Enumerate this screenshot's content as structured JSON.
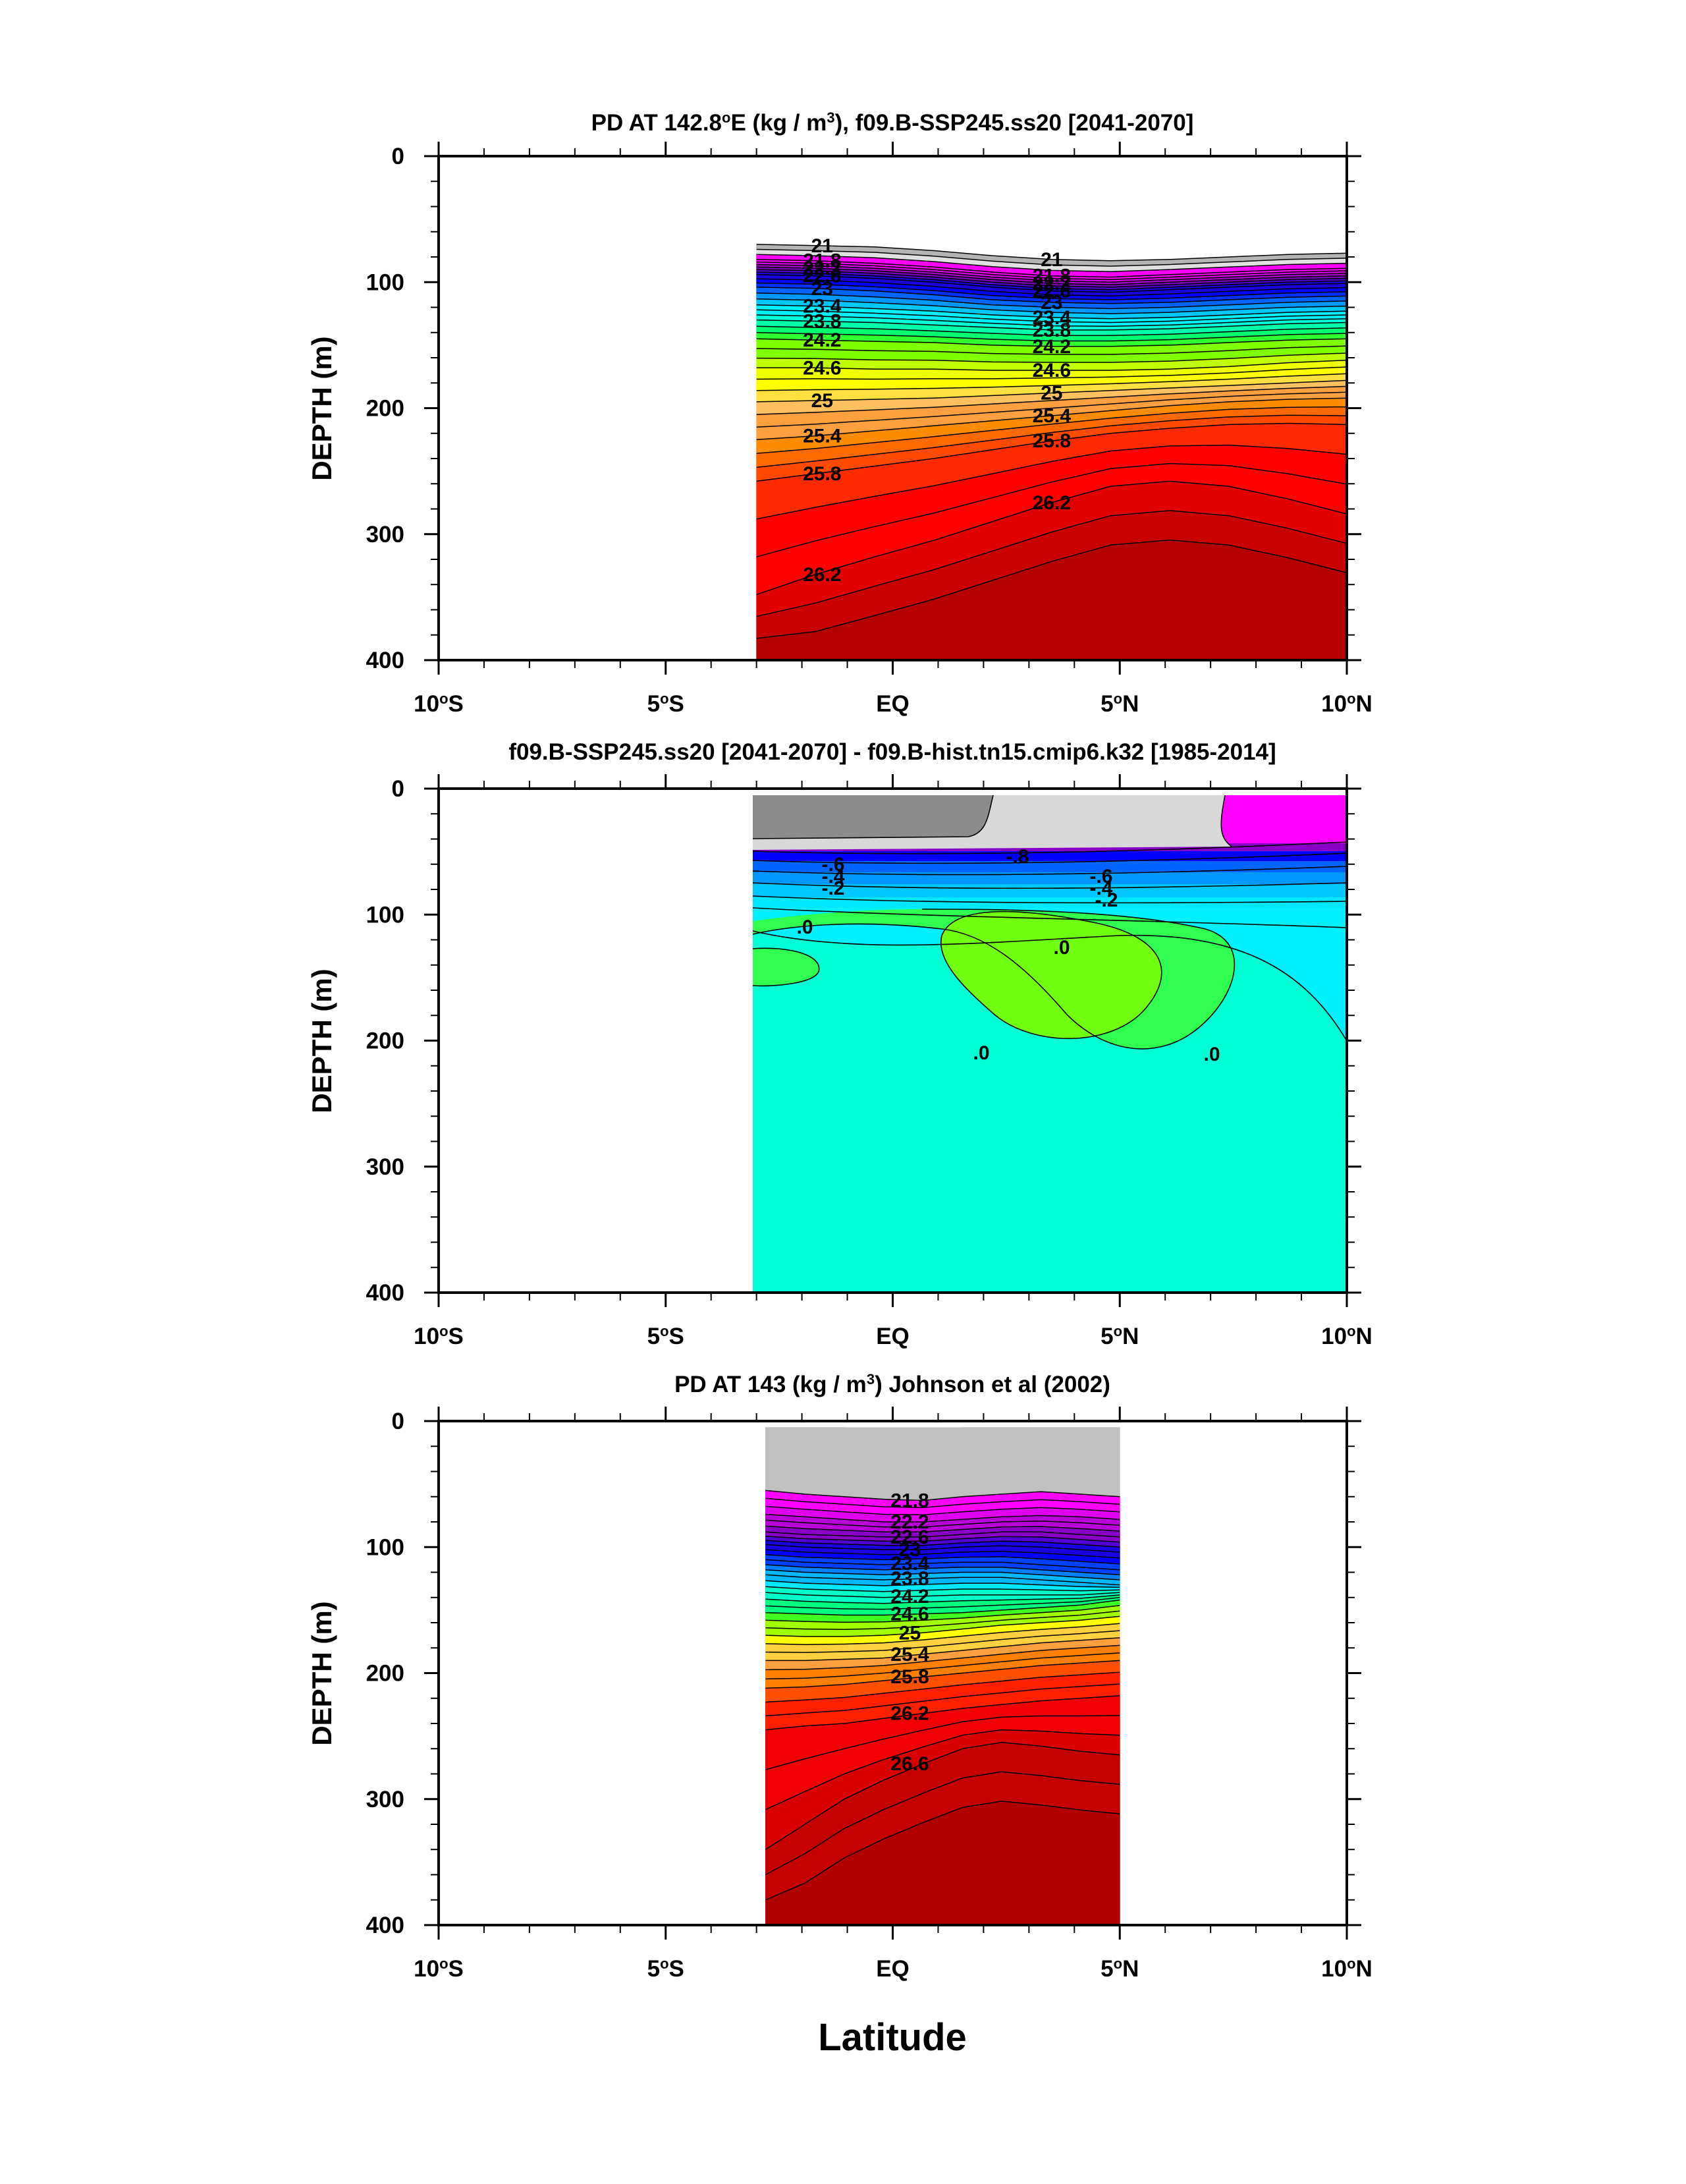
{
  "chart_data": [
    {
      "type": "filled-contour",
      "title": "PD AT 142.8°E (kg / m³), f09.B-SSP245.ss20 [2041-2070]",
      "title_parts": [
        "PD AT 142.8",
        "o",
        "E (kg / m",
        "3",
        "), f09.B-SSP245.ss20 [2041-2070]"
      ],
      "ylabel": "DEPTH (m)",
      "xlim": [
        -10,
        10
      ],
      "ylim": [
        400,
        0
      ],
      "x_ticks": [
        -10,
        -5,
        0,
        5,
        10
      ],
      "x_tick_labels": [
        [
          "10",
          "o",
          "S"
        ],
        [
          "5",
          "o",
          "S"
        ],
        [
          "",
          "",
          "EQ"
        ],
        [
          "5",
          "o",
          "N"
        ],
        [
          "10",
          "o",
          "N"
        ]
      ],
      "y_ticks": [
        0,
        100,
        200,
        300,
        400
      ],
      "y_tick_labels": [
        "0",
        "100",
        "200",
        "300",
        "400"
      ],
      "data_x_range": [
        -3,
        10
      ],
      "colors": [
        "#8c8c8c",
        "#b4b4b4",
        "#e0e0e0",
        "#ff00ff",
        "#d800e8",
        "#aa00cc",
        "#7a00bb",
        "#5000c8",
        "#1a00dc",
        "#0000ff",
        "#0030ff",
        "#0064ff",
        "#0098ff",
        "#00c8ff",
        "#00f0ff",
        "#00ffd8",
        "#00ffaa",
        "#00ff70",
        "#30ff30",
        "#80ff00",
        "#c0ff00",
        "#f0ff00",
        "#ffff00",
        "#ffe040",
        "#ffc060",
        "#ffa040",
        "#ff8c00",
        "#ff6a00",
        "#ff4a00",
        "#ff2a00",
        "#ff0000",
        "#e00000",
        "#c80000",
        "#b40000"
      ],
      "contours": [
        {
          "value": 21.0,
          "depth": [
            70,
            71,
            72,
            75,
            79,
            82,
            83,
            82,
            80,
            78,
            77
          ],
          "label": "21"
        },
        {
          "value": 21.8,
          "depth": [
            82,
            83,
            85,
            88,
            92,
            95,
            96,
            94,
            92,
            90,
            89
          ],
          "label": "21.8"
        },
        {
          "value": 22.2,
          "depth": [
            88,
            89,
            91,
            94,
            98,
            101,
            102,
            100,
            98,
            96,
            95
          ],
          "label": "22.2"
        },
        {
          "value": 22.6,
          "depth": [
            94,
            95,
            97,
            100,
            104,
            107,
            108,
            106,
            104,
            102,
            101
          ],
          "label": "22.6"
        },
        {
          "value": 23.0,
          "depth": [
            104,
            105,
            107,
            110,
            114,
            116,
            117,
            116,
            114,
            112,
            111
          ],
          "label": "23"
        },
        {
          "value": 23.4,
          "depth": [
            118,
            119,
            121,
            123,
            126,
            128,
            129,
            128,
            126,
            124,
            123
          ],
          "label": "23.4"
        },
        {
          "value": 23.8,
          "depth": [
            130,
            131,
            132,
            134,
            136,
            138,
            138,
            137,
            135,
            133,
            132
          ],
          "label": "23.8"
        },
        {
          "value": 24.2,
          "depth": [
            145,
            146,
            147,
            148,
            150,
            151,
            151,
            150,
            148,
            146,
            145
          ],
          "label": "24.2"
        },
        {
          "value": 24.6,
          "depth": [
            168,
            168,
            169,
            169,
            170,
            170,
            170,
            169,
            167,
            164,
            162
          ],
          "label": "24.6"
        },
        {
          "value": 25.0,
          "depth": [
            195,
            194,
            193,
            192,
            190,
            188,
            186,
            184,
            182,
            180,
            178
          ],
          "label": "25"
        },
        {
          "value": 25.4,
          "depth": [
            225,
            222,
            218,
            214,
            210,
            206,
            202,
            198,
            195,
            193,
            192
          ],
          "label": "25.4"
        },
        {
          "value": 25.8,
          "depth": [
            258,
            252,
            246,
            240,
            233,
            226,
            220,
            216,
            213,
            212,
            213
          ],
          "label": "25.8"
        },
        {
          "value": 26.2,
          "depth": [
            348,
            332,
            318,
            305,
            290,
            275,
            262,
            258,
            262,
            272,
            284
          ],
          "label": "26.2"
        }
      ]
    },
    {
      "type": "filled-contour",
      "title": "f09.B-SSP245.ss20 [2041-2070] - f09.B-hist.tn15.cmip6.k32 [1985-2014]",
      "ylabel": "DEPTH (m)",
      "xlim": [
        -10,
        10
      ],
      "ylim": [
        400,
        0
      ],
      "x_ticks": [
        -10,
        -5,
        0,
        5,
        10
      ],
      "x_tick_labels": [
        [
          "10",
          "o",
          "S"
        ],
        [
          "5",
          "o",
          "S"
        ],
        [
          "",
          "",
          "EQ"
        ],
        [
          "5",
          "o",
          "N"
        ],
        [
          "10",
          "o",
          "N"
        ]
      ],
      "y_ticks": [
        0,
        100,
        200,
        300,
        400
      ],
      "y_tick_labels": [
        "0",
        "100",
        "200",
        "300",
        "400"
      ],
      "data_x_range": [
        -3,
        10
      ],
      "contour_labels": [
        "-.8",
        "-.6",
        "-.4",
        "-.2",
        ".0",
        "-.6",
        "-.4",
        "-.2",
        ".0",
        ".0",
        ".0"
      ],
      "regions": [
        {
          "name": "deep",
          "value": 0.0,
          "color": "#00ffd4"
        },
        {
          "name": "thermocline-negative",
          "value": -0.1,
          "color": "#00f0ff"
        },
        {
          "name": "subsurface-positive",
          "value": 0.05,
          "color": "#30ff50"
        },
        {
          "name": "core-positive",
          "value": 0.1,
          "color": "#70ff10"
        },
        {
          "name": "surface-gray-dark",
          "value": -1.0,
          "color": "#8c8c8c"
        },
        {
          "name": "surface-gray-light",
          "value": -0.9,
          "color": "#d8d8d8"
        },
        {
          "name": "surface-magenta",
          "value": -0.7,
          "color": "#ff00ff"
        }
      ]
    },
    {
      "type": "filled-contour",
      "title": "PD AT 143 (kg / m³) Johnson et al (2002)",
      "title_parts": [
        "PD AT 143 (kg / m",
        "3",
        ") Johnson et al (2002)"
      ],
      "ylabel": "DEPTH (m)",
      "xlabel": "Latitude",
      "xlim": [
        -10,
        10
      ],
      "ylim": [
        400,
        0
      ],
      "x_ticks": [
        -10,
        -5,
        0,
        5,
        10
      ],
      "x_tick_labels": [
        [
          "10",
          "o",
          "S"
        ],
        [
          "5",
          "o",
          "S"
        ],
        [
          "",
          "",
          "EQ"
        ],
        [
          "5",
          "o",
          "N"
        ],
        [
          "10",
          "o",
          "N"
        ]
      ],
      "y_ticks": [
        0,
        100,
        200,
        300,
        400
      ],
      "y_tick_labels": [
        "0",
        "100",
        "200",
        "300",
        "400"
      ],
      "data_x_range": [
        -2.8,
        5
      ],
      "colors": [
        "#c0c0c0",
        "#ff00ff",
        "#e000f0",
        "#b800d8",
        "#8800c8",
        "#5000d0",
        "#1a00e0",
        "#0000ff",
        "#0040ff",
        "#0080ff",
        "#00b8ff",
        "#00e8ff",
        "#00ffc8",
        "#00ff80",
        "#40ff20",
        "#a0ff00",
        "#ffff00",
        "#ffd040",
        "#ffa040",
        "#ff8000",
        "#ff5000",
        "#ff2000",
        "#f00000",
        "#d80000",
        "#c40000",
        "#b00000"
      ],
      "contours": [
        {
          "value": 21.8,
          "depth": [
            55,
            58,
            60,
            62,
            63,
            60,
            58,
            56,
            58,
            60
          ],
          "label": "21.8"
        },
        {
          "value": 22.2,
          "depth": [
            74,
            76,
            78,
            80,
            80,
            78,
            76,
            75,
            76,
            78
          ],
          "label": "22.2"
        },
        {
          "value": 22.6,
          "depth": [
            88,
            90,
            91,
            92,
            92,
            90,
            88,
            88,
            90,
            92
          ],
          "label": "22.6"
        },
        {
          "value": 23.0,
          "depth": [
            98,
            100,
            101,
            102,
            102,
            100,
            99,
            100,
            102,
            104
          ],
          "label": "23"
        },
        {
          "value": 23.4,
          "depth": [
            110,
            112,
            113,
            114,
            113,
            112,
            112,
            114,
            116,
            118
          ],
          "label": "23.4"
        },
        {
          "value": 23.8,
          "depth": [
            122,
            124,
            125,
            126,
            125,
            124,
            124,
            126,
            128,
            130
          ],
          "label": "23.8"
        },
        {
          "value": 24.2,
          "depth": [
            136,
            138,
            139,
            140,
            139,
            138,
            138,
            138,
            138,
            136
          ],
          "label": "24.2"
        },
        {
          "value": 24.6,
          "depth": [
            152,
            153,
            154,
            154,
            153,
            152,
            150,
            148,
            146,
            142
          ],
          "label": "24.6"
        },
        {
          "value": 25.0,
          "depth": [
            170,
            171,
            171,
            170,
            168,
            165,
            162,
            160,
            158,
            155
          ],
          "label": "25"
        },
        {
          "value": 25.4,
          "depth": [
            190,
            190,
            189,
            188,
            185,
            182,
            179,
            176,
            174,
            172
          ],
          "label": "25.4"
        },
        {
          "value": 25.8,
          "depth": [
            212,
            211,
            209,
            206,
            203,
            200,
            197,
            194,
            192,
            190
          ],
          "label": "25.8"
        },
        {
          "value": 26.2,
          "depth": [
            245,
            242,
            240,
            236,
            232,
            228,
            225,
            222,
            220,
            218
          ],
          "label": "26.2"
        },
        {
          "value": 26.6,
          "depth": [
            340,
            320,
            300,
            285,
            272,
            260,
            255,
            258,
            262,
            265
          ],
          "label": "26.6"
        }
      ]
    }
  ],
  "shared_xlabel": "Latitude"
}
